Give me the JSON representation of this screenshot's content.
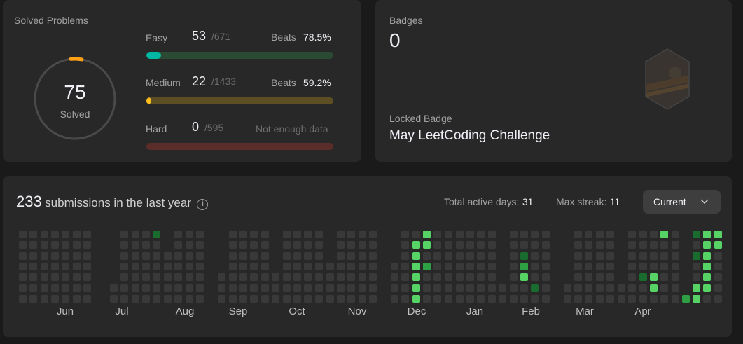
{
  "solved": {
    "title": "Solved Problems",
    "total": "75",
    "total_label": "Solved",
    "difficulties": [
      {
        "name": "Easy",
        "count": "53",
        "total": "/671",
        "beats_label": "Beats",
        "beats_value": "78.5%",
        "progress": 0.079,
        "fill_color": "#00b8a3",
        "track_color": "#2a4a34"
      },
      {
        "name": "Medium",
        "count": "22",
        "total": "/1433",
        "beats_label": "Beats",
        "beats_value": "59.2%",
        "progress": 0.015,
        "fill_color": "#ffc01e",
        "track_color": "#5e4e24"
      },
      {
        "name": "Hard",
        "count": "0",
        "total": "/595",
        "beats_label": "",
        "beats_value": "Not enough data",
        "progress": 0,
        "fill_color": "#ef4743",
        "track_color": "#5a2d2b"
      }
    ]
  },
  "badges": {
    "title": "Badges",
    "count": "0",
    "locked_label": "Locked Badge",
    "locked_name": "May LeetCoding Challenge"
  },
  "calendar": {
    "count": "233",
    "text": "submissions in the last year",
    "active_label": "Total active days:",
    "active_value": "31",
    "streak_label": "Max streak:",
    "streak_value": "11",
    "select_value": "Current",
    "months": [
      "Jun",
      "Jul",
      "Aug",
      "Sep",
      "Oct",
      "Nov",
      "Dec",
      "Jan",
      "Feb",
      "Mar",
      "Apr"
    ],
    "colors": {
      "empty": "#393939",
      "level1": "#196c2e",
      "level2": "#2ea043",
      "level3": "#56d364"
    }
  }
}
